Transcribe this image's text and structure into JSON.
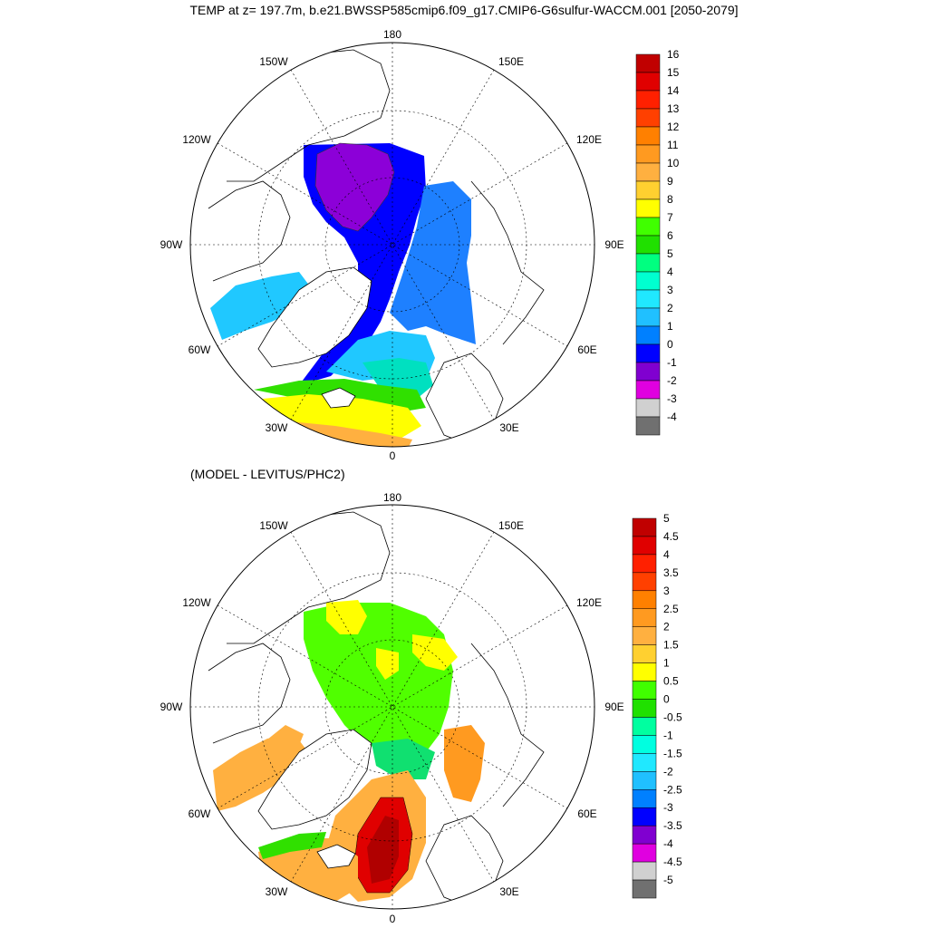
{
  "title": "TEMP at z= 197.7m, b.e21.BWSSP585cmip6.f09_g17.CMIP6-G6sulfur-WACCM.001 [2050-2079]",
  "panels": [
    {
      "title": "",
      "lon_labels": {
        "top": "180",
        "bottom": "0",
        "left": "90W",
        "right": "90E",
        "upper_left": "150W",
        "upper_right": "150E",
        "mid_upper_left": "120W",
        "mid_upper_right": "120E",
        "mid_lower_left": "60W",
        "mid_lower_right": "60E",
        "lower_left": "30W",
        "lower_right": "30E"
      },
      "colorbar": {
        "labels": [
          "16",
          "15",
          "14",
          "13",
          "12",
          "11",
          "10",
          "9",
          "8",
          "7",
          "6",
          "5",
          "4",
          "3",
          "2",
          "1",
          "0",
          "-1",
          "-2",
          "-3",
          "-4"
        ],
        "colors": [
          "#c00000",
          "#e00000",
          "#ff2000",
          "#ff4000",
          "#ff8000",
          "#ff9a20",
          "#ffb040",
          "#ffd030",
          "#ffff00",
          "#40ff00",
          "#20e000",
          "#00ff80",
          "#00ffd0",
          "#20e8ff",
          "#20c0ff",
          "#0080ff",
          "#0000ff",
          "#8000d0",
          "#e000e0",
          "#d0d0d0",
          "#707070"
        ]
      }
    },
    {
      "title": "(MODEL - LEVITUS/PHC2)",
      "lon_labels": {
        "top": "180",
        "bottom": "0",
        "left": "90W",
        "right": "90E",
        "upper_left": "150W",
        "upper_right": "150E",
        "mid_upper_left": "120W",
        "mid_upper_right": "120E",
        "mid_lower_left": "60W",
        "mid_lower_right": "60E",
        "lower_left": "30W",
        "lower_right": "30E"
      },
      "colorbar": {
        "labels": [
          "5",
          "4.5",
          "4",
          "3.5",
          "3",
          "2.5",
          "2",
          "1.5",
          "1",
          "0.5",
          "0",
          "-0.5",
          "-1",
          "-1.5",
          "-2",
          "-2.5",
          "-3",
          "-3.5",
          "-4",
          "-4.5",
          "-5"
        ],
        "colors": [
          "#c00000",
          "#e00000",
          "#ff2000",
          "#ff4000",
          "#ff8000",
          "#ff9a20",
          "#ffb040",
          "#ffd030",
          "#ffff00",
          "#40ff00",
          "#20e000",
          "#00ffa0",
          "#00ffe0",
          "#20e8ff",
          "#20c0ff",
          "#0080ff",
          "#0000ff",
          "#8000d0",
          "#e000e0",
          "#d0d0d0",
          "#707070"
        ]
      }
    }
  ]
}
